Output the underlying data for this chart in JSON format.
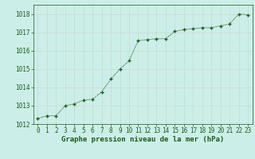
{
  "x": [
    0,
    1,
    2,
    3,
    4,
    5,
    6,
    7,
    8,
    9,
    10,
    11,
    12,
    13,
    14,
    15,
    16,
    17,
    18,
    19,
    20,
    21,
    22,
    23
  ],
  "y": [
    1012.3,
    1012.45,
    1012.45,
    1013.0,
    1013.1,
    1013.3,
    1013.35,
    1013.75,
    1014.45,
    1015.0,
    1015.45,
    1016.55,
    1016.6,
    1016.65,
    1016.65,
    1017.05,
    1017.15,
    1017.2,
    1017.25,
    1017.25,
    1017.35,
    1017.45,
    1018.0,
    1017.95
  ],
  "title": "Graphe pression niveau de la mer (hPa)",
  "xlim": [
    -0.5,
    23.5
  ],
  "ylim": [
    1012,
    1018.5
  ],
  "yticks": [
    1012,
    1013,
    1014,
    1015,
    1016,
    1017,
    1018
  ],
  "xticks": [
    0,
    1,
    2,
    3,
    4,
    5,
    6,
    7,
    8,
    9,
    10,
    11,
    12,
    13,
    14,
    15,
    16,
    17,
    18,
    19,
    20,
    21,
    22,
    23
  ],
  "line_color": "#1a5c1a",
  "marker_color": "#1a5c1a",
  "bg_color": "#cceee8",
  "grid_color": "#c8d8d0",
  "title_color": "#1a5c1a",
  "title_fontsize": 6.5,
  "tick_fontsize": 5.5
}
